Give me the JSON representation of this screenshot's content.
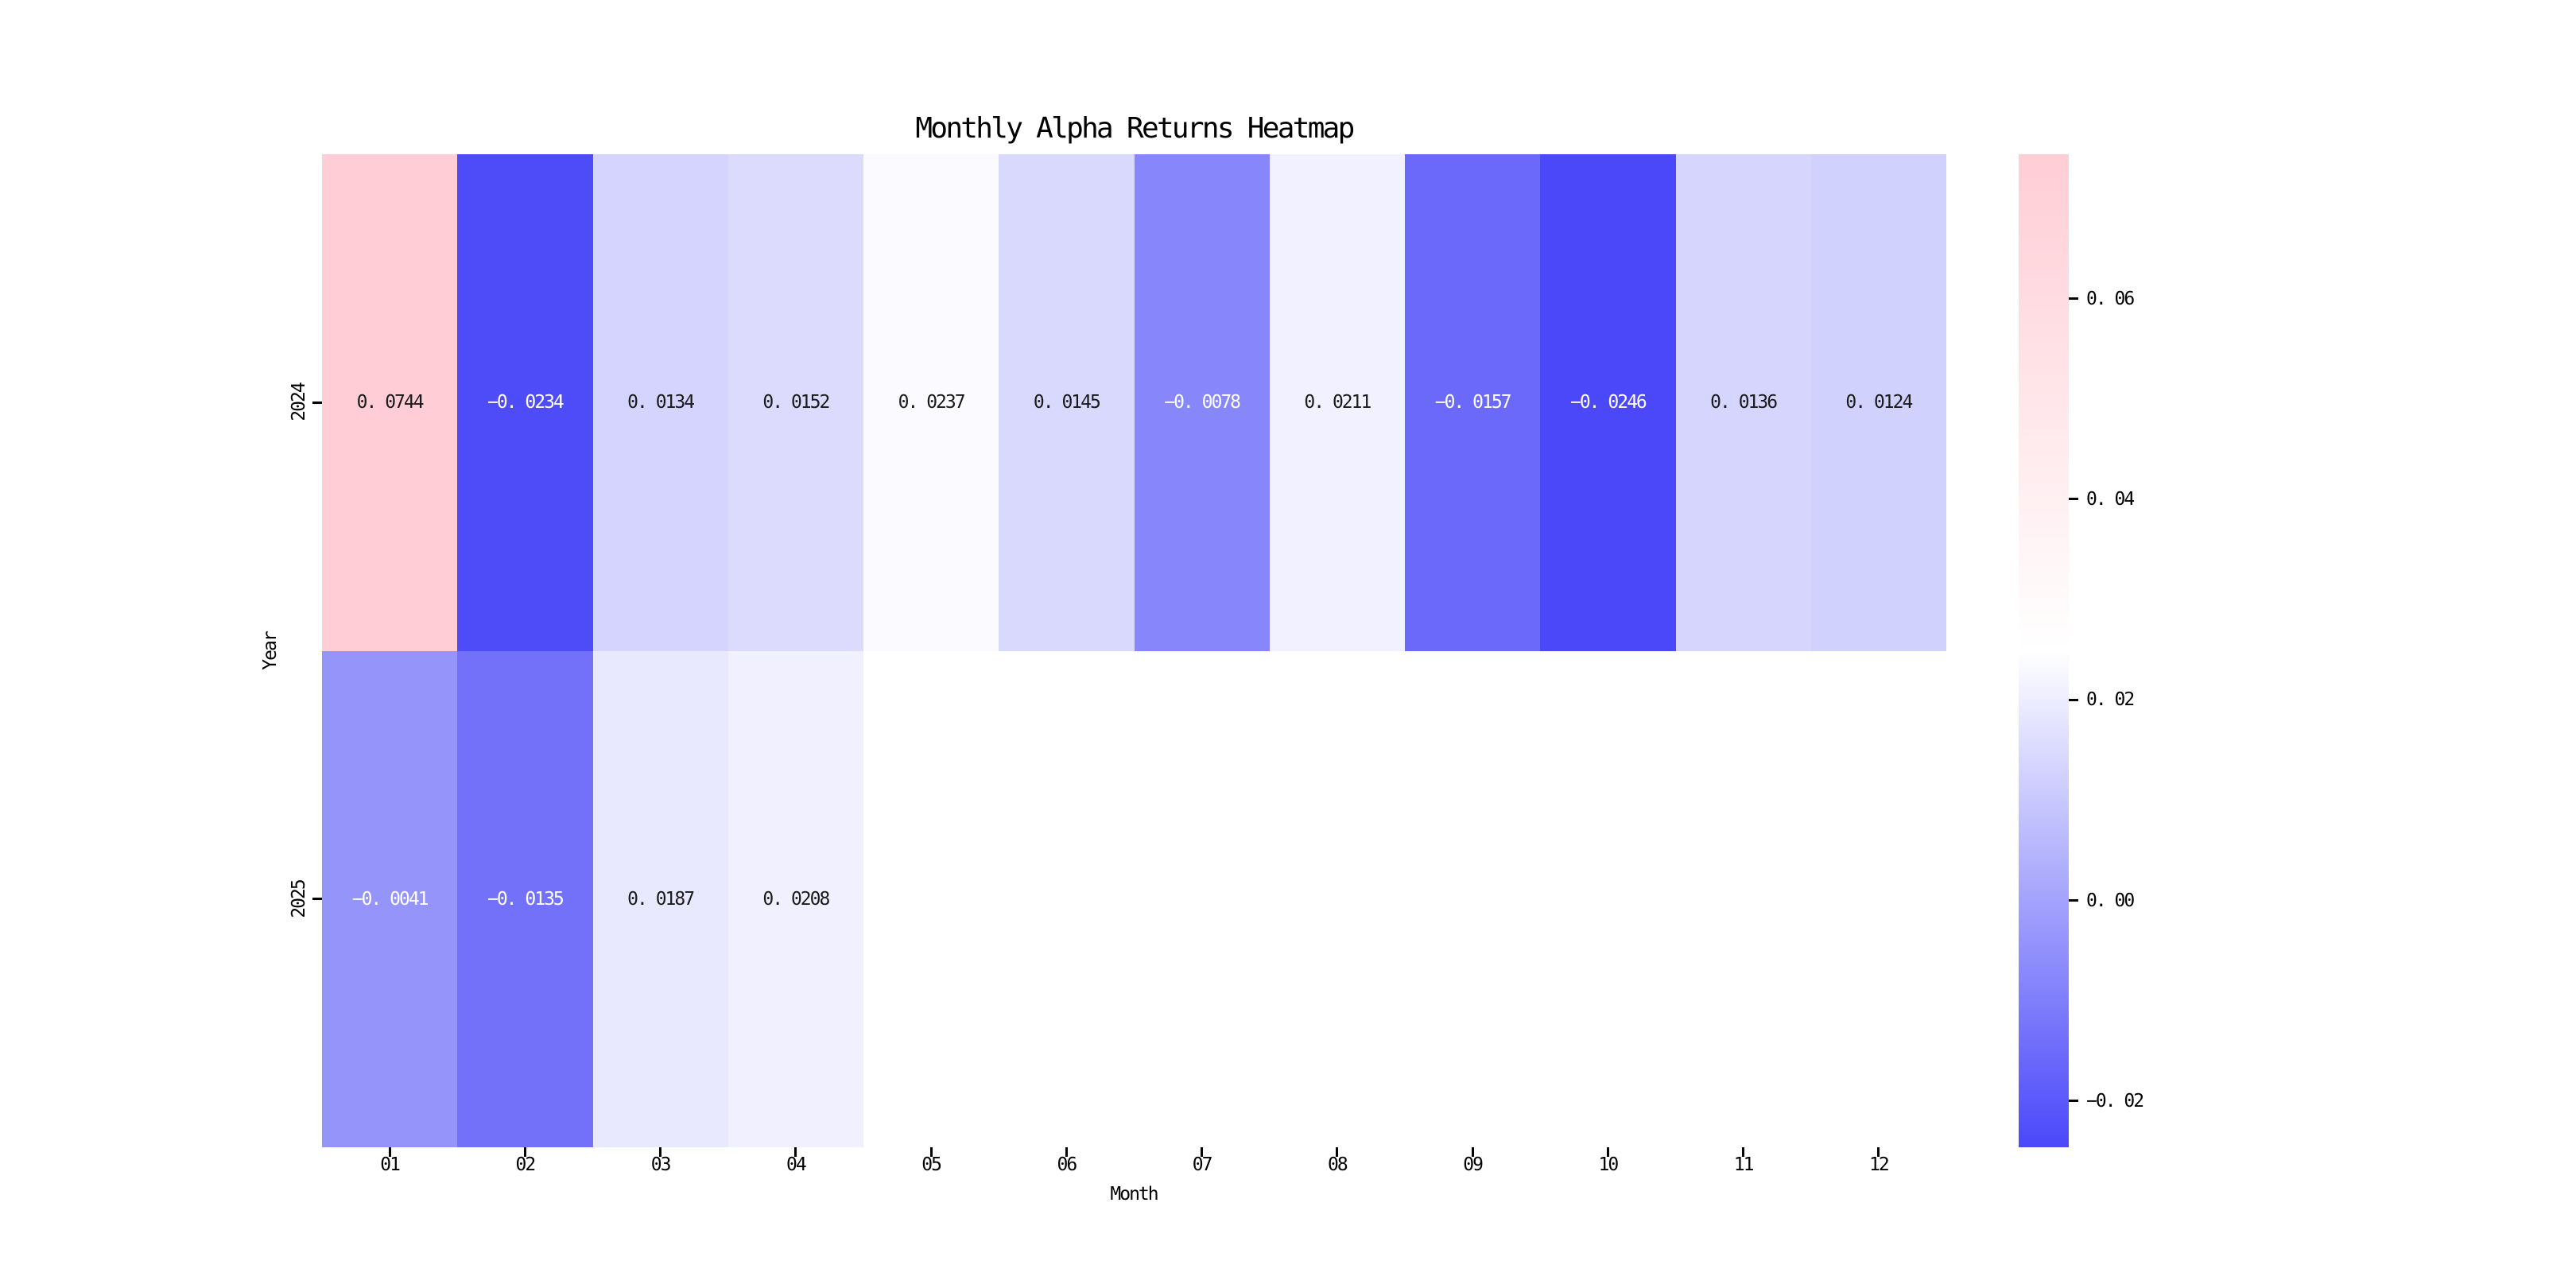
{
  "chart_data": {
    "type": "heatmap",
    "title": "Monthly Alpha Returns Heatmap",
    "xlabel": "Month",
    "ylabel": "Year",
    "x_categories": [
      "01",
      "02",
      "03",
      "04",
      "05",
      "06",
      "07",
      "08",
      "09",
      "10",
      "11",
      "12"
    ],
    "y_categories": [
      "2024",
      "2025"
    ],
    "series": [
      {
        "name": "2024",
        "values": [
          0.0744,
          -0.0234,
          0.0134,
          0.0152,
          0.0237,
          0.0145,
          -0.0078,
          0.0211,
          -0.0157,
          -0.0246,
          0.0136,
          0.0124
        ]
      },
      {
        "name": "2025",
        "values": [
          -0.0041,
          -0.0135,
          0.0187,
          0.0208,
          null,
          null,
          null,
          null,
          null,
          null,
          null,
          null
        ]
      }
    ],
    "vmin": -0.0246,
    "vmax": 0.0744,
    "annotation_decimals": 4,
    "grid": false,
    "colorbar": {
      "position": "right",
      "ticks": [
        0.06,
        0.04,
        0.02,
        0.0,
        -0.02
      ],
      "tick_decimals": 2
    },
    "colors": {
      "low": "#4a48f9",
      "mid": "#ffffff",
      "high": "#ffcdd5",
      "nan": "#ffffff",
      "annotation_dark": "#1a1a1a",
      "annotation_light": "#ffffff",
      "axis_text": "#000000"
    }
  }
}
